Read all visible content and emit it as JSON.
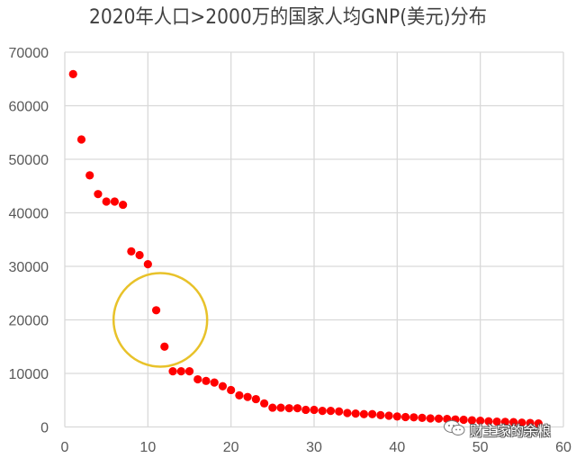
{
  "chart_data": {
    "type": "scatter",
    "title": "2020年人口>2000万的国家人均GNP(美元)分布",
    "xlabel": "",
    "ylabel": "",
    "xlim": [
      0,
      60
    ],
    "ylim": [
      0,
      70000
    ],
    "x_ticks": [
      "0",
      "10",
      "20",
      "30",
      "40",
      "50",
      "60"
    ],
    "y_ticks": [
      "0",
      "10000",
      "20000",
      "30000",
      "40000",
      "50000",
      "60000",
      "70000"
    ],
    "grid": true,
    "legend": "none",
    "marker_color": "#ff0000",
    "series": [
      {
        "name": "人均GNP",
        "x": [
          1,
          2,
          3,
          4,
          5,
          6,
          7,
          8,
          9,
          10,
          11,
          12,
          13,
          14,
          15,
          16,
          17,
          18,
          19,
          20,
          21,
          22,
          23,
          24,
          25,
          26,
          27,
          28,
          29,
          30,
          31,
          32,
          33,
          34,
          35,
          36,
          37,
          38,
          39,
          40,
          41,
          42,
          43,
          44,
          45,
          46,
          47,
          48,
          49,
          50,
          51,
          52,
          53,
          54,
          55,
          56,
          57
        ],
        "values": [
          65900,
          53700,
          47000,
          43500,
          42100,
          42100,
          41500,
          32800,
          32100,
          30400,
          21800,
          15000,
          10400,
          10400,
          10400,
          8900,
          8600,
          8300,
          7600,
          6900,
          5900,
          5600,
          5200,
          4400,
          3600,
          3600,
          3500,
          3500,
          3200,
          3200,
          3000,
          3000,
          2900,
          2600,
          2500,
          2400,
          2400,
          2200,
          2100,
          1950,
          1850,
          1800,
          1700,
          1600,
          1550,
          1500,
          1400,
          1350,
          1250,
          1150,
          1050,
          1000,
          950,
          900,
          800,
          750,
          650
        ]
      }
    ],
    "annotations": [
      {
        "type": "circle",
        "center_x": 11.5,
        "center_y": 20000,
        "radius_px": 52,
        "color": "#e8c22a",
        "note": "highlights points 11 and 12"
      }
    ]
  },
  "title": "2020年人口>2000万的国家人均GNP(美元)分布",
  "watermark": {
    "text": "财主家的余粮",
    "icon": "wechat-icon"
  }
}
